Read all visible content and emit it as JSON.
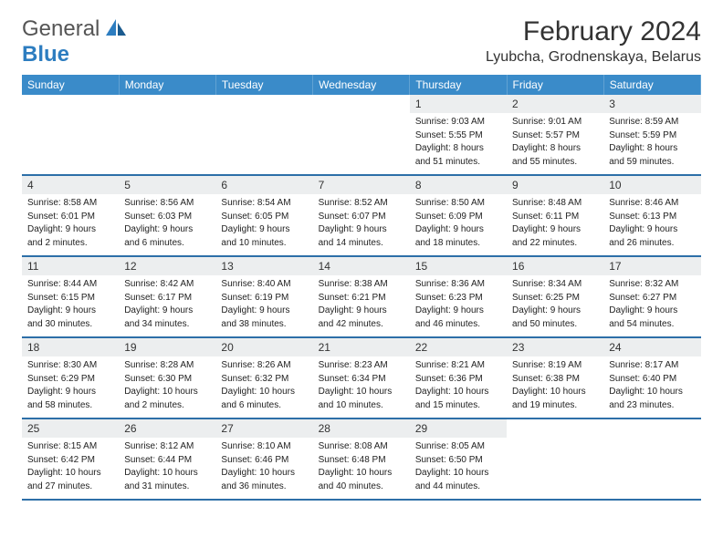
{
  "logo": {
    "line1": "General",
    "line2": "Blue"
  },
  "title": "February 2024",
  "location": "Lyubcha, Grodnenskaya, Belarus",
  "colors": {
    "header_bg": "#3a8bc9",
    "rule": "#2d6fa8",
    "daynum_bg": "#eceeef"
  },
  "day_headers": [
    "Sunday",
    "Monday",
    "Tuesday",
    "Wednesday",
    "Thursday",
    "Friday",
    "Saturday"
  ],
  "weeks": [
    [
      {
        "empty": true
      },
      {
        "empty": true
      },
      {
        "empty": true
      },
      {
        "empty": true
      },
      {
        "n": "1",
        "sr": "Sunrise: 9:03 AM",
        "ss": "Sunset: 5:55 PM",
        "dl1": "Daylight: 8 hours",
        "dl2": "and 51 minutes."
      },
      {
        "n": "2",
        "sr": "Sunrise: 9:01 AM",
        "ss": "Sunset: 5:57 PM",
        "dl1": "Daylight: 8 hours",
        "dl2": "and 55 minutes."
      },
      {
        "n": "3",
        "sr": "Sunrise: 8:59 AM",
        "ss": "Sunset: 5:59 PM",
        "dl1": "Daylight: 8 hours",
        "dl2": "and 59 minutes."
      }
    ],
    [
      {
        "n": "4",
        "sr": "Sunrise: 8:58 AM",
        "ss": "Sunset: 6:01 PM",
        "dl1": "Daylight: 9 hours",
        "dl2": "and 2 minutes."
      },
      {
        "n": "5",
        "sr": "Sunrise: 8:56 AM",
        "ss": "Sunset: 6:03 PM",
        "dl1": "Daylight: 9 hours",
        "dl2": "and 6 minutes."
      },
      {
        "n": "6",
        "sr": "Sunrise: 8:54 AM",
        "ss": "Sunset: 6:05 PM",
        "dl1": "Daylight: 9 hours",
        "dl2": "and 10 minutes."
      },
      {
        "n": "7",
        "sr": "Sunrise: 8:52 AM",
        "ss": "Sunset: 6:07 PM",
        "dl1": "Daylight: 9 hours",
        "dl2": "and 14 minutes."
      },
      {
        "n": "8",
        "sr": "Sunrise: 8:50 AM",
        "ss": "Sunset: 6:09 PM",
        "dl1": "Daylight: 9 hours",
        "dl2": "and 18 minutes."
      },
      {
        "n": "9",
        "sr": "Sunrise: 8:48 AM",
        "ss": "Sunset: 6:11 PM",
        "dl1": "Daylight: 9 hours",
        "dl2": "and 22 minutes."
      },
      {
        "n": "10",
        "sr": "Sunrise: 8:46 AM",
        "ss": "Sunset: 6:13 PM",
        "dl1": "Daylight: 9 hours",
        "dl2": "and 26 minutes."
      }
    ],
    [
      {
        "n": "11",
        "sr": "Sunrise: 8:44 AM",
        "ss": "Sunset: 6:15 PM",
        "dl1": "Daylight: 9 hours",
        "dl2": "and 30 minutes."
      },
      {
        "n": "12",
        "sr": "Sunrise: 8:42 AM",
        "ss": "Sunset: 6:17 PM",
        "dl1": "Daylight: 9 hours",
        "dl2": "and 34 minutes."
      },
      {
        "n": "13",
        "sr": "Sunrise: 8:40 AM",
        "ss": "Sunset: 6:19 PM",
        "dl1": "Daylight: 9 hours",
        "dl2": "and 38 minutes."
      },
      {
        "n": "14",
        "sr": "Sunrise: 8:38 AM",
        "ss": "Sunset: 6:21 PM",
        "dl1": "Daylight: 9 hours",
        "dl2": "and 42 minutes."
      },
      {
        "n": "15",
        "sr": "Sunrise: 8:36 AM",
        "ss": "Sunset: 6:23 PM",
        "dl1": "Daylight: 9 hours",
        "dl2": "and 46 minutes."
      },
      {
        "n": "16",
        "sr": "Sunrise: 8:34 AM",
        "ss": "Sunset: 6:25 PM",
        "dl1": "Daylight: 9 hours",
        "dl2": "and 50 minutes."
      },
      {
        "n": "17",
        "sr": "Sunrise: 8:32 AM",
        "ss": "Sunset: 6:27 PM",
        "dl1": "Daylight: 9 hours",
        "dl2": "and 54 minutes."
      }
    ],
    [
      {
        "n": "18",
        "sr": "Sunrise: 8:30 AM",
        "ss": "Sunset: 6:29 PM",
        "dl1": "Daylight: 9 hours",
        "dl2": "and 58 minutes."
      },
      {
        "n": "19",
        "sr": "Sunrise: 8:28 AM",
        "ss": "Sunset: 6:30 PM",
        "dl1": "Daylight: 10 hours",
        "dl2": "and 2 minutes."
      },
      {
        "n": "20",
        "sr": "Sunrise: 8:26 AM",
        "ss": "Sunset: 6:32 PM",
        "dl1": "Daylight: 10 hours",
        "dl2": "and 6 minutes."
      },
      {
        "n": "21",
        "sr": "Sunrise: 8:23 AM",
        "ss": "Sunset: 6:34 PM",
        "dl1": "Daylight: 10 hours",
        "dl2": "and 10 minutes."
      },
      {
        "n": "22",
        "sr": "Sunrise: 8:21 AM",
        "ss": "Sunset: 6:36 PM",
        "dl1": "Daylight: 10 hours",
        "dl2": "and 15 minutes."
      },
      {
        "n": "23",
        "sr": "Sunrise: 8:19 AM",
        "ss": "Sunset: 6:38 PM",
        "dl1": "Daylight: 10 hours",
        "dl2": "and 19 minutes."
      },
      {
        "n": "24",
        "sr": "Sunrise: 8:17 AM",
        "ss": "Sunset: 6:40 PM",
        "dl1": "Daylight: 10 hours",
        "dl2": "and 23 minutes."
      }
    ],
    [
      {
        "n": "25",
        "sr": "Sunrise: 8:15 AM",
        "ss": "Sunset: 6:42 PM",
        "dl1": "Daylight: 10 hours",
        "dl2": "and 27 minutes."
      },
      {
        "n": "26",
        "sr": "Sunrise: 8:12 AM",
        "ss": "Sunset: 6:44 PM",
        "dl1": "Daylight: 10 hours",
        "dl2": "and 31 minutes."
      },
      {
        "n": "27",
        "sr": "Sunrise: 8:10 AM",
        "ss": "Sunset: 6:46 PM",
        "dl1": "Daylight: 10 hours",
        "dl2": "and 36 minutes."
      },
      {
        "n": "28",
        "sr": "Sunrise: 8:08 AM",
        "ss": "Sunset: 6:48 PM",
        "dl1": "Daylight: 10 hours",
        "dl2": "and 40 minutes."
      },
      {
        "n": "29",
        "sr": "Sunrise: 8:05 AM",
        "ss": "Sunset: 6:50 PM",
        "dl1": "Daylight: 10 hours",
        "dl2": "and 44 minutes."
      },
      {
        "empty": true
      },
      {
        "empty": true
      }
    ]
  ]
}
